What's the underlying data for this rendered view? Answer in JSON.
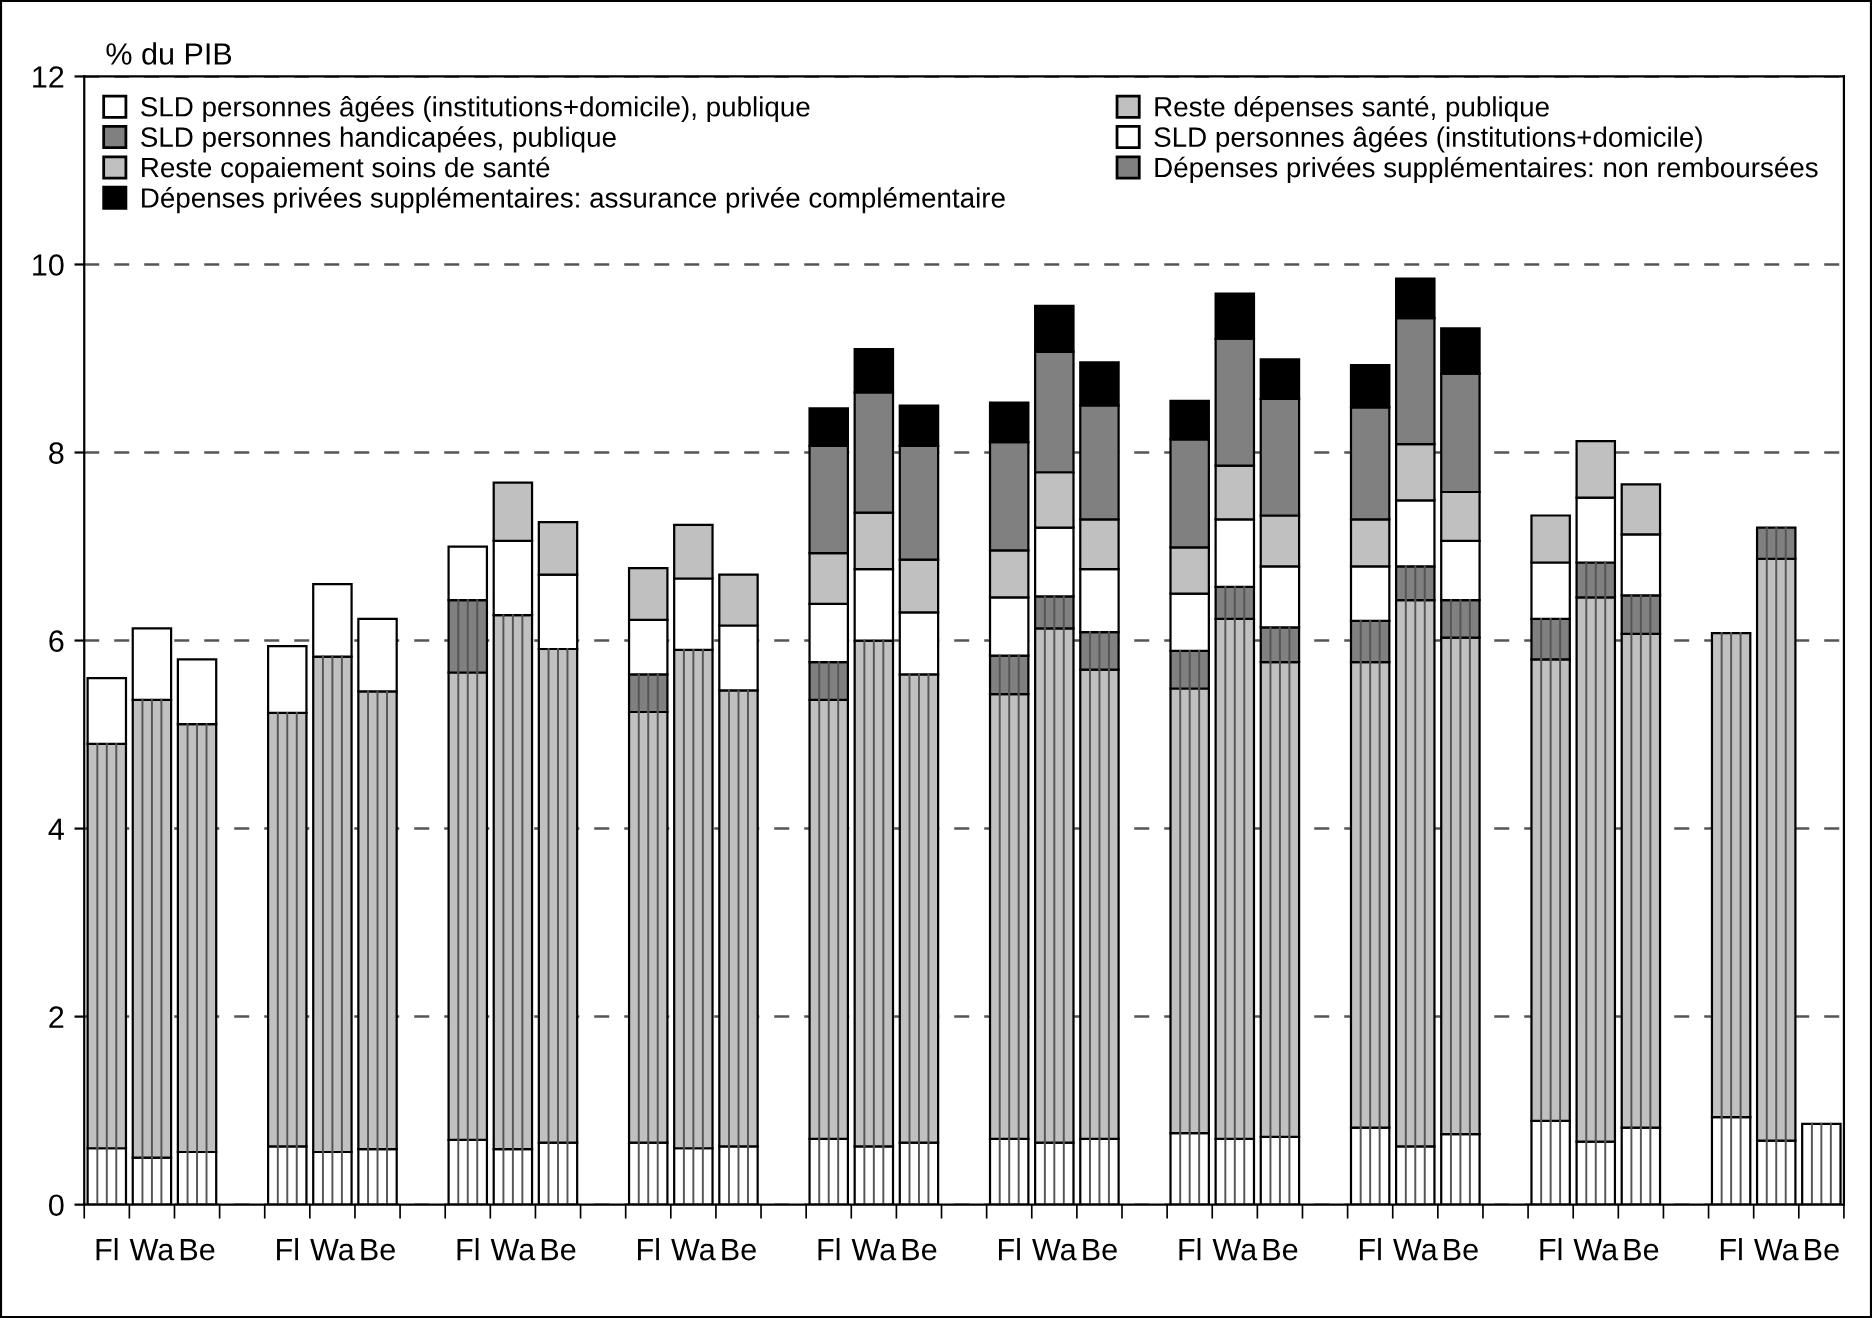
{
  "chart_data": {
    "type": "bar",
    "stacked": true,
    "ylabel": "% du PIB",
    "categories": [
      "Fl",
      "Wa",
      "Be",
      null,
      "Fl",
      "Wa",
      "Be",
      null,
      "Fl",
      "Wa",
      "Be",
      null,
      "Fl",
      "Wa",
      "Be",
      null,
      "Fl",
      "Wa",
      "Be",
      null,
      "Fl",
      "Wa",
      "Be",
      null,
      "Fl",
      "Wa",
      "Be",
      null,
      "Fl",
      "Wa",
      "Be",
      null,
      "Fl",
      "Wa",
      "Be",
      null,
      "Fl",
      "Wa",
      "Be"
    ],
    "series": [
      {
        "name": "SLD personnes âgées (institutions+domicile), publique",
        "color": "#ffffff",
        "values": [
          0.6,
          0.5,
          0.56,
          null,
          0.62,
          0.56,
          0.59,
          null,
          0.69,
          0.59,
          0.66,
          null,
          0.66,
          0.6,
          0.62,
          null,
          0.7,
          0.62,
          0.66,
          null,
          0.7,
          0.66,
          0.7,
          null,
          0.76,
          0.7,
          0.72,
          null,
          0.82,
          0.62,
          0.75,
          null,
          0.89,
          0.67,
          0.82,
          null,
          0.93,
          0.68,
          0.86
        ]
      },
      {
        "name": "Reste dépenses santé, publique",
        "color": "#c0c0c0",
        "values": [
          4.3,
          4.87,
          4.55,
          null,
          4.61,
          5.27,
          4.87,
          null,
          4.97,
          5.68,
          5.25,
          null,
          4.58,
          5.3,
          4.85,
          null,
          4.67,
          5.38,
          4.98,
          null,
          4.73,
          5.47,
          4.99,
          null,
          4.73,
          5.53,
          5.05,
          null,
          4.95,
          5.81,
          5.28,
          null,
          4.91,
          5.79,
          5.25,
          null,
          5.15,
          6.19,
          null
        ]
      },
      {
        "name": "SLD personnes handicapées, publique",
        "color": "#808080",
        "values": [
          null,
          null,
          null,
          null,
          null,
          null,
          null,
          null,
          0.77,
          null,
          null,
          null,
          0.4,
          null,
          null,
          null,
          0.4,
          null,
          null,
          null,
          0.41,
          0.34,
          0.4,
          null,
          0.4,
          0.34,
          0.37,
          null,
          0.44,
          0.36,
          0.4,
          null,
          0.43,
          0.37,
          0.41,
          null,
          null,
          0.33,
          null
        ]
      },
      {
        "name": "SLD personnes âgées (institutions+domicile)",
        "color": "#ffffff",
        "values": [
          0.7,
          0.76,
          0.69,
          null,
          0.71,
          0.77,
          0.77,
          null,
          0.57,
          0.79,
          0.79,
          null,
          0.58,
          0.76,
          0.69,
          null,
          0.62,
          0.76,
          0.66,
          null,
          0.62,
          0.73,
          0.67,
          null,
          0.61,
          0.72,
          0.65,
          null,
          0.58,
          0.7,
          0.63,
          null,
          0.6,
          0.69,
          0.65,
          null,
          null,
          null,
          null
        ]
      },
      {
        "name": "Reste copaiement soins de santé",
        "color": "#c0c0c0",
        "values": [
          null,
          null,
          null,
          null,
          null,
          null,
          null,
          null,
          null,
          0.62,
          0.56,
          null,
          0.55,
          0.57,
          0.54,
          null,
          0.54,
          0.6,
          0.56,
          null,
          0.5,
          0.59,
          0.53,
          null,
          0.49,
          0.57,
          0.54,
          null,
          0.5,
          0.6,
          0.52,
          null,
          0.5,
          0.6,
          0.53,
          null,
          null,
          null,
          null
        ]
      },
      {
        "name": "Dépenses privées supplémentaires: non remboursées",
        "color": "#808080",
        "values": [
          null,
          null,
          null,
          null,
          null,
          null,
          null,
          null,
          null,
          null,
          null,
          null,
          null,
          null,
          null,
          null,
          1.14,
          1.28,
          1.21,
          null,
          1.15,
          1.28,
          1.21,
          null,
          1.15,
          1.35,
          1.24,
          null,
          1.19,
          1.34,
          1.26,
          null,
          null,
          null,
          null,
          null,
          null,
          null,
          null
        ]
      },
      {
        "name": "Dépenses privées supplémentaires: assurance privée complémentaire",
        "color": "#000000",
        "values": [
          null,
          null,
          null,
          null,
          null,
          null,
          null,
          null,
          null,
          null,
          null,
          null,
          null,
          null,
          null,
          null,
          0.4,
          0.46,
          0.43,
          null,
          0.42,
          0.49,
          0.46,
          null,
          0.41,
          0.48,
          0.42,
          null,
          0.45,
          0.42,
          0.48,
          null,
          null,
          null,
          null,
          null,
          null,
          null,
          null
        ]
      }
    ],
    "ylim": [
      0,
      12
    ],
    "yticks": [
      0,
      2,
      4,
      6,
      8,
      10,
      12
    ],
    "grid": "y",
    "legend": "top"
  }
}
